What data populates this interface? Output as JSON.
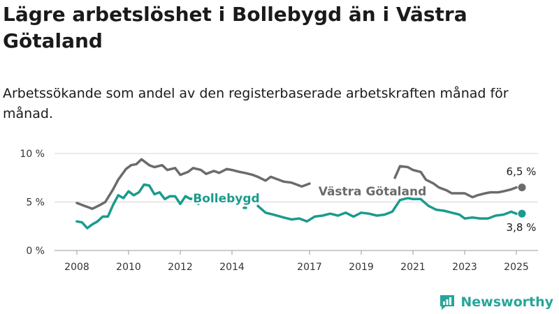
{
  "title": "Lägre arbetslöshet i Bollebygd än i Västra Götaland",
  "subtitle": "Arbetssökande som andel av den registerbaserade arbetskraften månad för månad.",
  "brand": "Newsworthy",
  "colors": {
    "regional": "#6b6b6b",
    "local": "#1a9b8c",
    "grid": "#d4d4d4",
    "brand": "#26a69a"
  },
  "chart_data": {
    "type": "line",
    "ylim": [
      0,
      10
    ],
    "y_ticks": [
      0,
      5,
      10
    ],
    "y_tick_labels": [
      "0 %",
      "5 %",
      "10 %"
    ],
    "xlim": [
      2008,
      2025.5
    ],
    "x_ticks": [
      2008,
      2010,
      2012,
      2014,
      2017,
      2019,
      2021,
      2023,
      2025
    ],
    "x_tick_labels": [
      "2008",
      "2010",
      "2012",
      "2014",
      "2017",
      "2019",
      "2021",
      "2023",
      "2025"
    ],
    "grid": true,
    "end_labels": {
      "regional": "6,5 %",
      "local": "3,8 %"
    },
    "series": [
      {
        "name": "Västra Götaland",
        "key": "regional",
        "points": [
          [
            2008.0,
            4.9
          ],
          [
            2008.3,
            4.6
          ],
          [
            2008.6,
            4.3
          ],
          [
            2008.9,
            4.7
          ],
          [
            2009.1,
            5.0
          ],
          [
            2009.4,
            6.3
          ],
          [
            2009.6,
            7.3
          ],
          [
            2009.9,
            8.4
          ],
          [
            2010.1,
            8.8
          ],
          [
            2010.3,
            8.9
          ],
          [
            2010.5,
            9.4
          ],
          [
            2010.8,
            8.8
          ],
          [
            2011.0,
            8.6
          ],
          [
            2011.3,
            8.8
          ],
          [
            2011.5,
            8.3
          ],
          [
            2011.8,
            8.5
          ],
          [
            2012.0,
            7.8
          ],
          [
            2012.3,
            8.1
          ],
          [
            2012.5,
            8.5
          ],
          [
            2012.8,
            8.3
          ],
          [
            2013.0,
            7.9
          ],
          [
            2013.3,
            8.2
          ],
          [
            2013.5,
            8.0
          ],
          [
            2013.8,
            8.4
          ],
          [
            2014.0,
            8.3
          ],
          [
            2014.3,
            8.1
          ],
          [
            2014.5,
            8.0
          ],
          [
            2014.8,
            7.8
          ],
          [
            2015.0,
            7.6
          ],
          [
            2015.3,
            7.2
          ],
          [
            2015.5,
            7.6
          ],
          [
            2015.8,
            7.3
          ],
          [
            2016.0,
            7.1
          ],
          [
            2016.3,
            7.0
          ],
          [
            2016.5,
            6.8
          ],
          [
            2016.7,
            6.6
          ],
          [
            2017.0,
            6.9
          ],
          null,
          [
            2020.3,
            7.5
          ],
          [
            2020.5,
            8.7
          ],
          [
            2020.8,
            8.6
          ],
          [
            2021.0,
            8.3
          ],
          [
            2021.3,
            8.1
          ],
          [
            2021.5,
            7.3
          ],
          [
            2021.8,
            6.9
          ],
          [
            2022.0,
            6.5
          ],
          [
            2022.3,
            6.2
          ],
          [
            2022.5,
            5.9
          ],
          [
            2022.8,
            5.9
          ],
          [
            2023.0,
            5.9
          ],
          [
            2023.3,
            5.5
          ],
          [
            2023.5,
            5.7
          ],
          [
            2023.8,
            5.9
          ],
          [
            2024.0,
            6.0
          ],
          [
            2024.3,
            6.0
          ],
          [
            2024.5,
            6.1
          ],
          [
            2024.8,
            6.3
          ],
          [
            2025.0,
            6.5
          ]
        ]
      },
      {
        "name": "Bollebygd",
        "key": "local",
        "points": [
          [
            2008.0,
            3.0
          ],
          [
            2008.2,
            2.9
          ],
          [
            2008.4,
            2.3
          ],
          [
            2008.6,
            2.7
          ],
          [
            2008.8,
            3.0
          ],
          [
            2009.0,
            3.5
          ],
          [
            2009.2,
            3.5
          ],
          [
            2009.4,
            4.7
          ],
          [
            2009.6,
            5.7
          ],
          [
            2009.8,
            5.4
          ],
          [
            2010.0,
            6.1
          ],
          [
            2010.2,
            5.7
          ],
          [
            2010.4,
            6.0
          ],
          [
            2010.6,
            6.8
          ],
          [
            2010.8,
            6.7
          ],
          [
            2011.0,
            5.8
          ],
          [
            2011.2,
            6.0
          ],
          [
            2011.4,
            5.3
          ],
          [
            2011.6,
            5.6
          ],
          [
            2011.8,
            5.6
          ],
          [
            2012.0,
            4.8
          ],
          [
            2012.2,
            5.6
          ],
          [
            2012.4,
            5.3
          ],
          [
            2012.6,
            5.5
          ],
          [
            2012.7,
            4.8
          ],
          null,
          [
            2014.5,
            4.4
          ],
          null,
          [
            2015.0,
            4.6
          ],
          [
            2015.3,
            3.9
          ],
          [
            2015.6,
            3.7
          ],
          [
            2016.0,
            3.4
          ],
          [
            2016.3,
            3.2
          ],
          [
            2016.6,
            3.3
          ],
          [
            2016.9,
            3.0
          ],
          [
            2017.2,
            3.5
          ],
          [
            2017.5,
            3.6
          ],
          [
            2017.8,
            3.8
          ],
          [
            2018.1,
            3.6
          ],
          [
            2018.4,
            3.9
          ],
          [
            2018.7,
            3.5
          ],
          [
            2019.0,
            3.9
          ],
          [
            2019.3,
            3.8
          ],
          [
            2019.6,
            3.6
          ],
          [
            2019.9,
            3.7
          ],
          [
            2020.2,
            4.0
          ],
          [
            2020.5,
            5.2
          ],
          [
            2020.8,
            5.4
          ],
          [
            2021.0,
            5.3
          ],
          [
            2021.3,
            5.3
          ],
          [
            2021.6,
            4.6
          ],
          [
            2021.9,
            4.2
          ],
          [
            2022.2,
            4.1
          ],
          [
            2022.5,
            3.9
          ],
          [
            2022.8,
            3.7
          ],
          [
            2023.0,
            3.3
          ],
          [
            2023.3,
            3.4
          ],
          [
            2023.6,
            3.3
          ],
          [
            2023.9,
            3.3
          ],
          [
            2024.2,
            3.6
          ],
          [
            2024.5,
            3.7
          ],
          [
            2024.8,
            4.0
          ],
          [
            2025.0,
            3.8
          ]
        ]
      }
    ]
  }
}
